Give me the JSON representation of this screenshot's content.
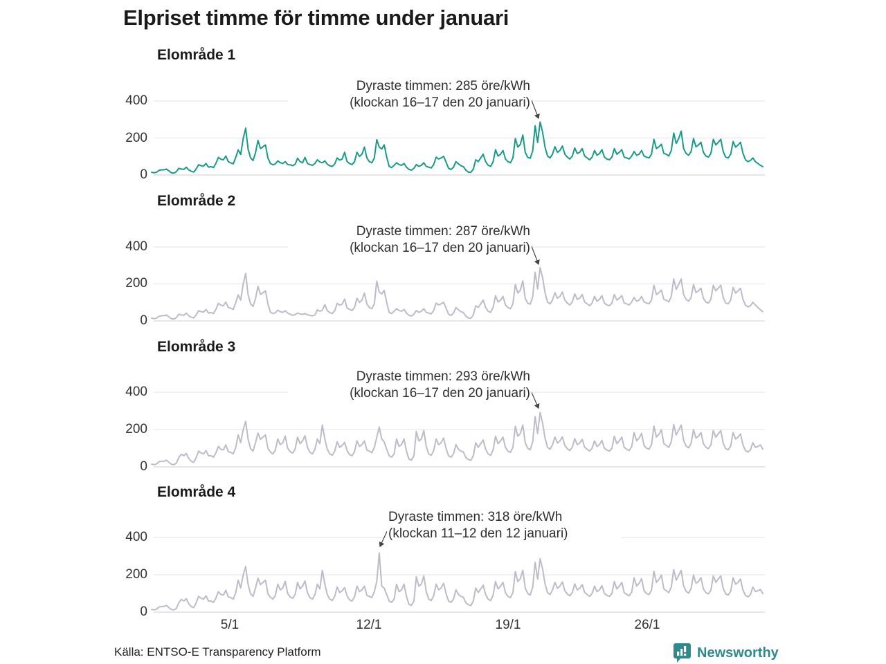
{
  "title": "Elpriset timme för timme under januari",
  "source_label": "Källa: ENTSO-E Transparency Platform",
  "brand": {
    "name": "Newsworthy",
    "color": "#2d8a8e"
  },
  "chart_data": {
    "type": "line",
    "title": "Elpriset timme för timme under januari",
    "x_axis": {
      "ticks": [
        "5/1",
        "12/1",
        "19/1",
        "26/1"
      ],
      "range": "1–31 januari",
      "resolution_hours": 3
    },
    "y_axis": {
      "ticks": [
        "400",
        "200",
        "0"
      ],
      "unit": "öre/kWh",
      "ylim": [
        0,
        450
      ]
    },
    "grid": "horizontal-only",
    "legend": "none",
    "panels": [
      {
        "title": "Elområde 1",
        "line_color": "#169b8a",
        "max_value": 285,
        "annotation": {
          "line1": "Dyraste timmen: 285 öre/kWh",
          "line2": "(klockan 16–17 den 20 januari)",
          "value": 285,
          "time": "16–17",
          "date": "20 januari"
        },
        "values_3h": [
          15,
          12,
          15,
          25,
          28,
          28,
          32,
          22,
          12,
          10,
          18,
          36,
          32,
          30,
          42,
          28,
          20,
          16,
          32,
          55,
          50,
          48,
          62,
          42,
          45,
          40,
          62,
          95,
          85,
          82,
          102,
          72,
          65,
          60,
          95,
          135,
          110,
          195,
          252,
          140,
          92,
          78,
          120,
          186,
          142,
          152,
          162,
          92,
          62,
          55,
          60,
          76,
          66,
          62,
          72,
          56,
          55,
          50,
          58,
          90,
          72,
          66,
          95,
          62,
          56,
          52,
          62,
          82,
          70,
          66,
          76,
          58,
          50,
          46,
          60,
          92,
          80,
          86,
          122,
          72,
          62,
          56,
          72,
          122,
          100,
          112,
          150,
          92,
          72,
          66,
          92,
          190,
          150,
          140,
          162,
          98,
          46,
          40,
          52,
          66,
          56,
          52,
          62,
          42,
          30,
          26,
          36,
          56,
          46,
          52,
          66,
          46,
          42,
          38,
          56,
          96,
          86,
          92,
          100,
          70,
          36,
          30,
          42,
          72,
          60,
          50,
          45,
          26,
          16,
          14,
          32,
          82,
          72,
          92,
          112,
          72,
          52,
          46,
          72,
          136,
          102,
          112,
          132,
          86,
          72,
          66,
          92,
          196,
          150,
          165,
          215,
          122,
          95,
          90,
          130,
          265,
          175,
          285,
          230,
          150,
          102,
          92,
          112,
          152,
          122,
          132,
          156,
          112,
          96,
          86,
          102,
          146,
          116,
          122,
          142,
          102,
          92,
          82,
          96,
          132,
          106,
          116,
          136,
          96,
          86,
          82,
          96,
          142,
          112,
          122,
          136,
          96,
          92,
          86,
          102,
          126,
          106,
          112,
          132,
          102,
          96,
          92,
          112,
          192,
          142,
          152,
          166,
          116,
          112,
          102,
          132,
          226,
          170,
          196,
          236,
          142,
          116,
          106,
          126,
          196,
          152,
          162,
          176,
          122,
          102,
          96,
          116,
          192,
          162,
          176,
          192,
          126,
          96,
          92,
          112,
          180,
          150,
          162,
          176,
          116,
          82,
          72,
          78,
          92,
          72,
          62,
          52,
          45
        ]
      },
      {
        "title": "Elområde 2",
        "line_color": "#bdbbca",
        "max_value": 287,
        "annotation": {
          "line1": "Dyraste timmen: 287 öre/kWh",
          "line2": "(klockan 16–17 den 20 januari)",
          "value": 287,
          "time": "16–17",
          "date": "20 januari"
        },
        "values_3h": [
          15,
          12,
          15,
          25,
          28,
          28,
          32,
          22,
          12,
          10,
          18,
          36,
          32,
          30,
          42,
          28,
          20,
          16,
          32,
          55,
          50,
          48,
          62,
          42,
          45,
          40,
          62,
          95,
          85,
          82,
          102,
          72,
          68,
          62,
          98,
          140,
          112,
          198,
          255,
          142,
          92,
          78,
          120,
          186,
          142,
          152,
          162,
          92,
          48,
          40,
          44,
          58,
          50,
          46,
          55,
          42,
          36,
          30,
          34,
          42,
          38,
          35,
          40,
          33,
          30,
          27,
          32,
          60,
          52,
          58,
          88,
          55,
          45,
          40,
          55,
          95,
          85,
          90,
          118,
          70,
          62,
          56,
          72,
          122,
          100,
          112,
          150,
          92,
          72,
          66,
          92,
          214,
          155,
          145,
          165,
          100,
          46,
          40,
          52,
          66,
          56,
          52,
          62,
          42,
          30,
          26,
          36,
          56,
          46,
          52,
          66,
          46,
          42,
          38,
          56,
          96,
          86,
          92,
          100,
          70,
          36,
          30,
          42,
          72,
          60,
          50,
          45,
          26,
          16,
          14,
          32,
          82,
          72,
          92,
          112,
          72,
          52,
          46,
          72,
          136,
          102,
          112,
          132,
          86,
          72,
          66,
          92,
          196,
          150,
          165,
          215,
          122,
          95,
          90,
          130,
          262,
          172,
          287,
          232,
          152,
          102,
          92,
          112,
          152,
          122,
          132,
          156,
          112,
          96,
          86,
          102,
          146,
          116,
          122,
          142,
          102,
          92,
          82,
          96,
          132,
          106,
          116,
          136,
          96,
          86,
          82,
          96,
          142,
          112,
          122,
          136,
          96,
          92,
          86,
          102,
          126,
          106,
          112,
          132,
          102,
          96,
          92,
          112,
          192,
          142,
          152,
          166,
          116,
          112,
          102,
          132,
          226,
          170,
          196,
          226,
          142,
          116,
          106,
          126,
          196,
          152,
          162,
          176,
          122,
          102,
          96,
          116,
          192,
          162,
          176,
          192,
          126,
          96,
          92,
          112,
          180,
          150,
          162,
          176,
          116,
          85,
          75,
          82,
          100,
          85,
          72,
          60,
          50
        ]
      },
      {
        "title": "Elområde 3",
        "line_color": "#bdbbca",
        "max_value": 293,
        "annotation": {
          "line1": "Dyraste timmen: 293 öre/kWh",
          "line2": "(klockan 16–17 den 20 januari)",
          "value": 293,
          "time": "16–17",
          "date": "20 januari"
        },
        "values_3h": [
          15,
          12,
          16,
          28,
          30,
          30,
          36,
          24,
          14,
          12,
          20,
          50,
          68,
          60,
          72,
          46,
          30,
          24,
          50,
          85,
          75,
          70,
          88,
          60,
          60,
          52,
          75,
          110,
          95,
          92,
          118,
          82,
          78,
          70,
          105,
          172,
          130,
          200,
          245,
          150,
          98,
          85,
          130,
          182,
          148,
          160,
          172,
          100,
          80,
          70,
          90,
          150,
          120,
          130,
          166,
          100,
          82,
          74,
          96,
          160,
          125,
          140,
          168,
          105,
          78,
          70,
          95,
          150,
          125,
          225,
          150,
          95,
          70,
          62,
          85,
          135,
          105,
          115,
          132,
          88,
          66,
          60,
          82,
          140,
          110,
          120,
          140,
          90,
          85,
          76,
          105,
          160,
          214,
          150,
          135,
          95,
          60,
          52,
          70,
          150,
          110,
          120,
          150,
          85,
          42,
          36,
          60,
          190,
          140,
          150,
          195,
          110,
          70,
          62,
          88,
          150,
          120,
          130,
          155,
          100,
          60,
          52,
          70,
          120,
          95,
          85,
          80,
          50,
          40,
          35,
          60,
          130,
          105,
          125,
          145,
          95,
          70,
          62,
          92,
          165,
          125,
          140,
          160,
          105,
          85,
          78,
          105,
          218,
          165,
          180,
          225,
          130,
          100,
          92,
          135,
          270,
          180,
          293,
          235,
          155,
          105,
          95,
          118,
          160,
          128,
          140,
          162,
          115,
          98,
          88,
          106,
          152,
          120,
          128,
          148,
          106,
          95,
          85,
          100,
          140,
          110,
          120,
          142,
          100,
          90,
          85,
          100,
          165,
          125,
          140,
          160,
          105,
          95,
          88,
          108,
          185,
          140,
          155,
          180,
          115,
          100,
          95,
          118,
          220,
          160,
          175,
          200,
          125,
          115,
          105,
          135,
          228,
          172,
          198,
          225,
          142,
          112,
          102,
          126,
          200,
          155,
          165,
          185,
          125,
          105,
          98,
          118,
          195,
          160,
          178,
          195,
          128,
          98,
          92,
          112,
          185,
          150,
          160,
          178,
          118,
          88,
          80,
          92,
          130,
          105,
          110,
          118,
          95
        ]
      },
      {
        "title": "Elområde 4",
        "line_color": "#bdbbca",
        "max_value": 318,
        "annotation": {
          "line1": "Dyraste timmen: 318 öre/kWh",
          "line2": "(klockan 11–12 den 12 januari)",
          "value": 318,
          "time": "11–12",
          "date": "12 januari"
        },
        "values_3h": [
          15,
          12,
          16,
          28,
          30,
          30,
          36,
          24,
          14,
          12,
          20,
          50,
          68,
          60,
          72,
          46,
          30,
          24,
          50,
          85,
          75,
          70,
          88,
          60,
          60,
          52,
          75,
          110,
          95,
          92,
          118,
          82,
          78,
          70,
          105,
          172,
          130,
          200,
          245,
          150,
          98,
          85,
          130,
          182,
          148,
          160,
          172,
          100,
          80,
          70,
          90,
          150,
          120,
          130,
          166,
          100,
          82,
          74,
          96,
          160,
          125,
          140,
          168,
          105,
          78,
          70,
          95,
          150,
          125,
          225,
          150,
          95,
          70,
          62,
          85,
          135,
          105,
          115,
          132,
          88,
          66,
          60,
          82,
          140,
          110,
          120,
          140,
          90,
          85,
          78,
          110,
          165,
          318,
          140,
          130,
          95,
          60,
          52,
          70,
          150,
          110,
          120,
          150,
          85,
          42,
          36,
          60,
          190,
          140,
          150,
          195,
          110,
          70,
          62,
          88,
          150,
          120,
          130,
          155,
          100,
          60,
          52,
          70,
          120,
          95,
          85,
          80,
          50,
          40,
          35,
          60,
          130,
          105,
          125,
          145,
          95,
          70,
          62,
          92,
          165,
          125,
          140,
          160,
          105,
          85,
          78,
          105,
          218,
          165,
          180,
          225,
          130,
          100,
          92,
          135,
          268,
          178,
          288,
          232,
          152,
          105,
          95,
          118,
          160,
          128,
          140,
          162,
          115,
          98,
          88,
          106,
          152,
          120,
          128,
          148,
          106,
          95,
          85,
          100,
          140,
          110,
          120,
          142,
          100,
          90,
          85,
          100,
          165,
          125,
          140,
          160,
          105,
          95,
          88,
          108,
          185,
          140,
          155,
          180,
          115,
          100,
          95,
          118,
          220,
          160,
          175,
          200,
          125,
          115,
          105,
          135,
          228,
          172,
          198,
          225,
          142,
          112,
          102,
          126,
          200,
          155,
          165,
          185,
          125,
          105,
          98,
          118,
          195,
          160,
          178,
          195,
          128,
          98,
          92,
          112,
          185,
          150,
          160,
          178,
          118,
          90,
          82,
          95,
          135,
          110,
          115,
          122,
          100
        ]
      }
    ]
  }
}
